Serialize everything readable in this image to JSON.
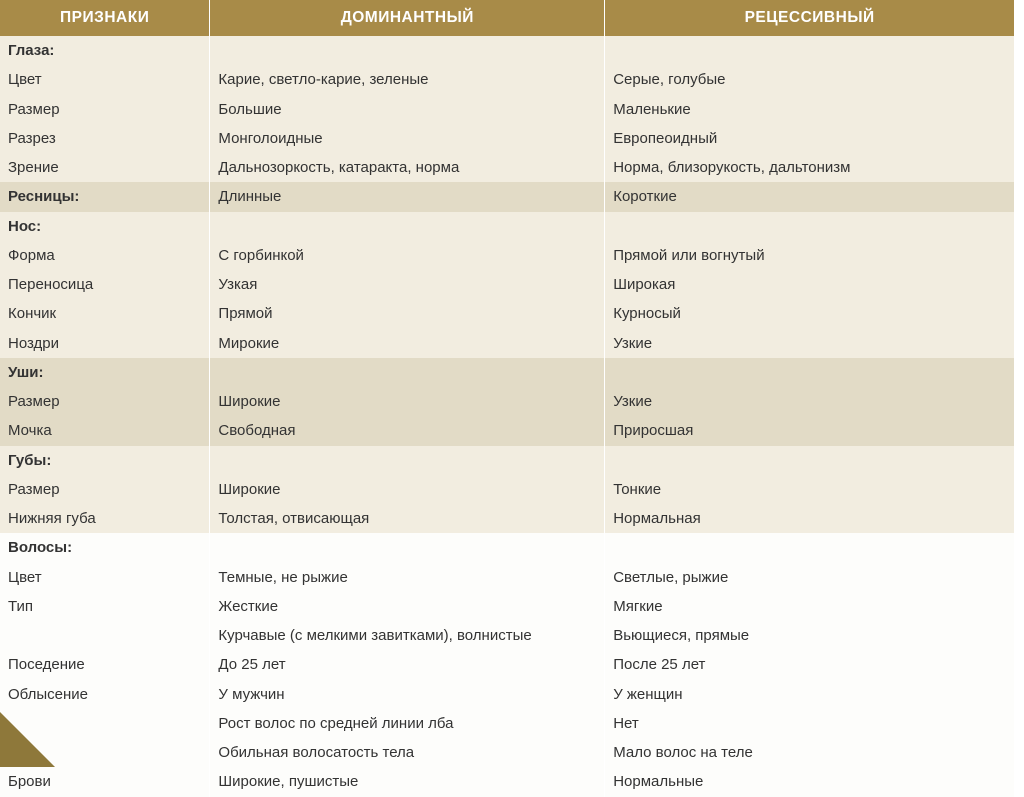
{
  "header": {
    "c1": "ПРИЗНАКИ",
    "c2": "ДОМИНАНТНЫЙ",
    "c3": "РЕЦЕССИВНЫЙ"
  },
  "rows": [
    {
      "band": "light",
      "bold": true,
      "c1": "Глаза:",
      "c2": "",
      "c3": ""
    },
    {
      "band": "light",
      "bold": false,
      "c1": "Цвет",
      "c2": "Карие, светло-карие, зеленые",
      "c3": "Серые, голубые"
    },
    {
      "band": "light",
      "bold": false,
      "c1": "Размер",
      "c2": "Большие",
      "c3": "Маленькие"
    },
    {
      "band": "light",
      "bold": false,
      "c1": "Разрез",
      "c2": "Монголоидные",
      "c3": "Европеоидный"
    },
    {
      "band": "light",
      "bold": false,
      "c1": "Зрение",
      "c2": "Дальнозоркость, катаракта, норма",
      "c3": "Норма, близорукость, дальтонизм"
    },
    {
      "band": "dark",
      "bold": true,
      "c1": "Ресницы:",
      "c2": "Длинные",
      "c3": "Короткие"
    },
    {
      "band": "light",
      "bold": true,
      "c1": "Нос:",
      "c2": "",
      "c3": ""
    },
    {
      "band": "light",
      "bold": false,
      "c1": "Форма",
      "c2": "С горбинкой",
      "c3": "Прямой или вогнутый"
    },
    {
      "band": "light",
      "bold": false,
      "c1": "Переносица",
      "c2": "Узкая",
      "c3": "Широкая"
    },
    {
      "band": "light",
      "bold": false,
      "c1": "Кончик",
      "c2": "Прямой",
      "c3": "Курносый"
    },
    {
      "band": "light",
      "bold": false,
      "c1": "Ноздри",
      "c2": "Мирокие",
      "c3": "Узкие"
    },
    {
      "band": "dark",
      "bold": true,
      "c1": "Уши:",
      "c2": "",
      "c3": ""
    },
    {
      "band": "dark",
      "bold": false,
      "c1": "Размер",
      "c2": "Широкие",
      "c3": "Узкие"
    },
    {
      "band": "dark",
      "bold": false,
      "c1": "Мочка",
      "c2": "Свободная",
      "c3": "Приросшая"
    },
    {
      "band": "light",
      "bold": true,
      "c1": "Губы:",
      "c2": "",
      "c3": ""
    },
    {
      "band": "light",
      "bold": false,
      "c1": "Размер",
      "c2": "Широкие",
      "c3": "Тонкие"
    },
    {
      "band": "light",
      "bold": false,
      "c1": "Нижняя губа",
      "c2": "Толстая, отвисающая",
      "c3": "Нормальная"
    },
    {
      "band": "white",
      "bold": true,
      "c1": "Волосы:",
      "c2": "",
      "c3": ""
    },
    {
      "band": "white",
      "bold": false,
      "c1": "Цвет",
      "c2": "Темные, не рыжие",
      "c3": "Светлые, рыжие"
    },
    {
      "band": "white",
      "bold": false,
      "c1": "Тип",
      "c2": "Жесткие",
      "c3": "Мягкие"
    },
    {
      "band": "white",
      "bold": false,
      "c1": "",
      "c2": "Курчавые (с мелкими завитками), волнистые",
      "c3": "Вьющиеся, прямые"
    },
    {
      "band": "white",
      "bold": false,
      "c1": "Поседение",
      "c2": "До 25 лет",
      "c3": "После 25 лет"
    },
    {
      "band": "white",
      "bold": false,
      "c1": "Облысение",
      "c2": "У мужчин",
      "c3": "У женщин"
    },
    {
      "band": "white",
      "bold": false,
      "c1": "",
      "c2": "Рост волос по средней линии лба",
      "c3": "Нет"
    },
    {
      "band": "white",
      "bold": false,
      "c1": "",
      "c2": "Обильная волосатость тела",
      "c3": "Мало волос на теле"
    },
    {
      "band": "white",
      "bold": false,
      "c1": "Брови",
      "c2": "Широкие, пушистые",
      "c3": "Нормальные"
    }
  ]
}
